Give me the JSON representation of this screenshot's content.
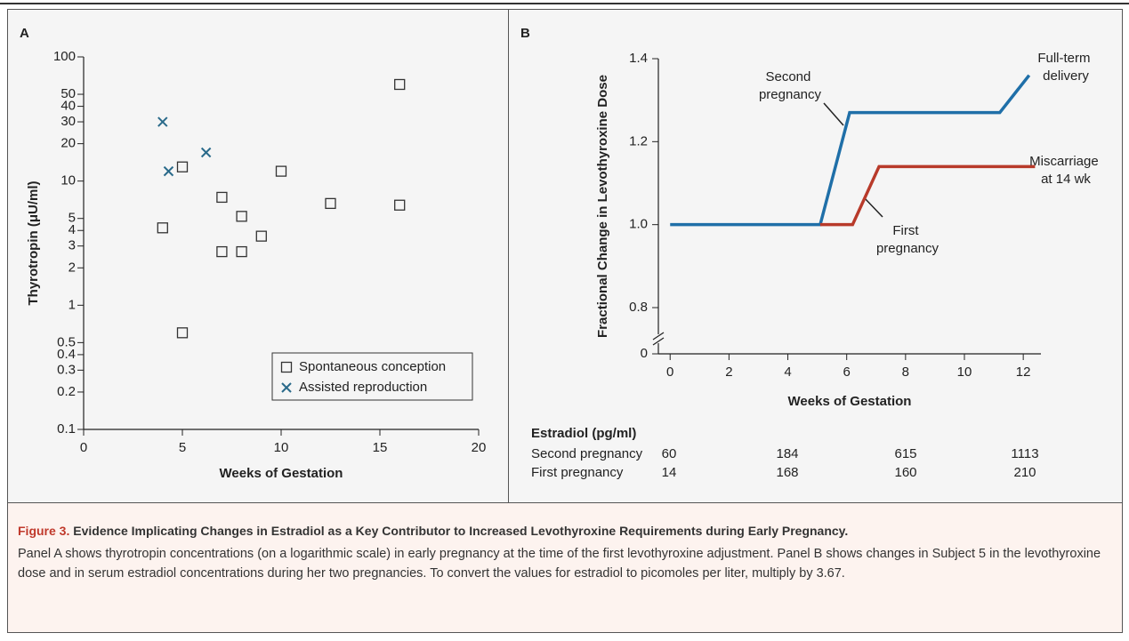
{
  "chart_data": [
    {
      "type": "scatter",
      "panel": "A",
      "xlabel": "Weeks of Gestation",
      "ylabel": "Thyrotropin (μU/ml)",
      "xlim": [
        0,
        20
      ],
      "xticks": [
        0,
        5,
        10,
        15,
        20
      ],
      "ylim": [
        0.1,
        100
      ],
      "yscale": "log",
      "yticks": [
        100,
        50,
        40,
        30,
        20,
        10,
        5,
        4,
        3,
        2,
        1,
        0.5,
        0.4,
        0.3,
        0.2,
        0.1
      ],
      "legend": "lower right",
      "series": [
        {
          "name": "Spontaneous conception",
          "marker": "square",
          "color": "#333333",
          "x": [
            16,
            5,
            10,
            7,
            12.5,
            16,
            4,
            8,
            9,
            7,
            8,
            5
          ],
          "values": [
            60,
            13,
            12,
            7.4,
            6.6,
            6.4,
            4.2,
            5.2,
            3.6,
            2.7,
            2.7,
            0.6
          ]
        },
        {
          "name": "Assisted reproduction",
          "marker": "x",
          "color": "#2a6a8a",
          "x": [
            4,
            4.3,
            6.2
          ],
          "values": [
            30,
            12,
            17
          ]
        }
      ]
    },
    {
      "type": "line",
      "panel": "B",
      "xlabel": "Weeks of Gestation",
      "ylabel": "Fractional Change in Levothyroxine Dose",
      "xlim": [
        -0.4,
        12.6
      ],
      "xticks": [
        0,
        2,
        4,
        6,
        8,
        10,
        12
      ],
      "ylim": [
        0,
        1.4
      ],
      "y_axis_break": true,
      "yticks": [
        0,
        0.8,
        {
          "value": 1,
          "label": "1.0"
        },
        1.2,
        1.4
      ],
      "series": [
        {
          "name": "Second pregnancy",
          "color": "#1f6fa8",
          "x": [
            0,
            5.1,
            6.1,
            11.2,
            12.2
          ],
          "values": [
            1,
            1,
            1.27,
            1.27,
            1.36
          ]
        },
        {
          "name": "First pregnancy",
          "color": "#b83a2a",
          "x": [
            5.1,
            6.2,
            7.1,
            12.4
          ],
          "values": [
            1,
            1,
            1.14,
            1.14
          ]
        }
      ],
      "annotations": [
        "Full-term delivery",
        "Miscarriage at 14 wk"
      ]
    }
  ],
  "estradiol_table": {
    "header": "Estradiol (pg/ml)",
    "rows": [
      {
        "label": "Second pregnancy",
        "values": [
          60,
          184,
          615,
          1113
        ]
      },
      {
        "label": "First pregnancy",
        "values": [
          14,
          168,
          160,
          210
        ]
      }
    ]
  },
  "caption": {
    "label": "Figure 3.",
    "title": "Evidence Implicating Changes in Estradiol as a Key Contributor to Increased Levothyroxine Requirements during Early Pregnancy.",
    "text": "Panel A shows thyrotropin concentrations (on a logarithmic scale) in early pregnancy at the time of the first levothyroxine adjustment. Panel B shows changes in Subject 5 in the levothyroxine dose and in serum estradiol concentrations during her two pregnancies. To convert the values for estradiol to picomoles per liter, multiply by 3.67."
  }
}
